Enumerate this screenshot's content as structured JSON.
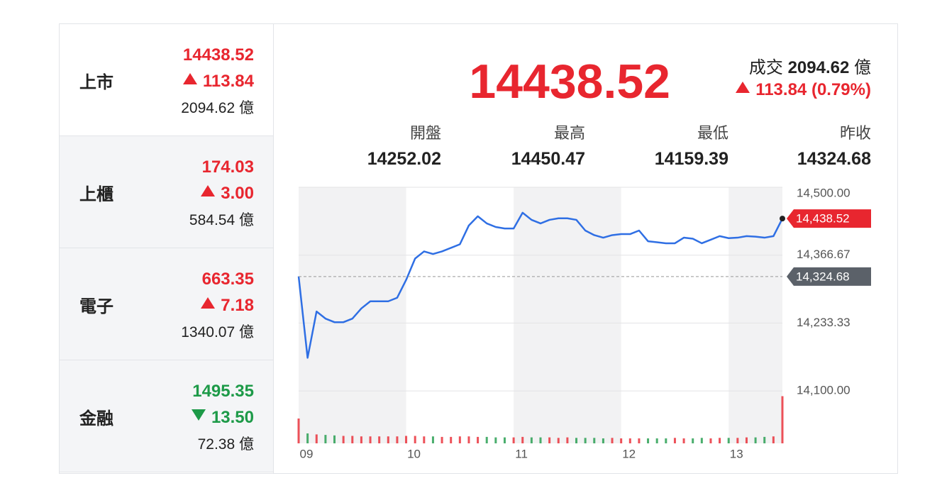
{
  "colors": {
    "up": "#e8262f",
    "down": "#1d9a48"
  },
  "sidebar": {
    "items": [
      {
        "name": "上市",
        "price": "14438.52",
        "change": "113.84",
        "direction": "up",
        "volume": "2094.62",
        "unit": "億"
      },
      {
        "name": "上櫃",
        "price": "174.03",
        "change": "3.00",
        "direction": "up",
        "volume": "584.54",
        "unit": "億"
      },
      {
        "name": "電子",
        "price": "663.35",
        "change": "7.18",
        "direction": "up",
        "volume": "1340.07",
        "unit": "億"
      },
      {
        "name": "金融",
        "price": "1495.35",
        "change": "13.50",
        "direction": "down",
        "volume": "72.38",
        "unit": "億"
      }
    ]
  },
  "quote": {
    "price": "14438.52",
    "volume_label": "成交",
    "volume": "2094.62",
    "unit": "億",
    "direction": "up",
    "change": "113.84",
    "change_pct": "(0.79%)",
    "stats": [
      {
        "label": "開盤",
        "value": "14252.02"
      },
      {
        "label": "最高",
        "value": "14450.47"
      },
      {
        "label": "最低",
        "value": "14159.39"
      },
      {
        "label": "昨收",
        "value": "14324.68"
      }
    ]
  },
  "chart_data": {
    "type": "line",
    "x": [
      540,
      545,
      550,
      555,
      560,
      565,
      570,
      575,
      580,
      585,
      590,
      595,
      600,
      605,
      610,
      615,
      620,
      625,
      630,
      635,
      640,
      645,
      650,
      655,
      660,
      665,
      670,
      675,
      680,
      685,
      690,
      695,
      700,
      705,
      710,
      715,
      720,
      725,
      730,
      735,
      740,
      745,
      750,
      755,
      760,
      765,
      770,
      775,
      780,
      785,
      790,
      795,
      800,
      805,
      810
    ],
    "xlim": [
      540,
      810
    ],
    "xticks": [
      {
        "value": 540,
        "label": "09"
      },
      {
        "value": 600,
        "label": "10"
      },
      {
        "value": 660,
        "label": "11"
      },
      {
        "value": 720,
        "label": "12"
      },
      {
        "value": 780,
        "label": "13"
      }
    ],
    "ylim": [
      13997,
      14500
    ],
    "yticks": [
      {
        "value": 14500,
        "label": "14,500.00"
      },
      {
        "value": 14366.67,
        "label": "14,366.67"
      },
      {
        "value": 14233.33,
        "label": "14,233.33"
      },
      {
        "value": 14100,
        "label": "14,100.00"
      }
    ],
    "y2lim": [
      0,
      100
    ],
    "grid": true,
    "series": [
      {
        "color": "#2f6fe4",
        "values": [
          14325,
          14165,
          14256,
          14242,
          14235,
          14235,
          14242,
          14262,
          14276,
          14276,
          14276,
          14283,
          14318,
          14360,
          14374,
          14369,
          14374,
          14381,
          14388,
          14425,
          14443,
          14429,
          14422,
          14419,
          14419,
          14450,
          14436,
          14429,
          14436,
          14439,
          14439,
          14436,
          14415,
          14406,
          14401,
          14406,
          14408,
          14408,
          14415,
          14394,
          14392,
          14390,
          14390,
          14401,
          14399,
          14390,
          14397,
          14404,
          14400,
          14401,
          14404,
          14403,
          14401,
          14404,
          14438.52
        ]
      },
      {
        "axis": "y2",
        "type": "bar",
        "up_color": "#e8262f",
        "down_color": "#1d9a48",
        "values": [
          50,
          20,
          18,
          17,
          16,
          15,
          15,
          14,
          14,
          14,
          14,
          14,
          15,
          15,
          14,
          14,
          13,
          13,
          14,
          14,
          13,
          13,
          12,
          12,
          12,
          13,
          12,
          12,
          12,
          11,
          12,
          11,
          11,
          11,
          10,
          11,
          10,
          10,
          10,
          10,
          10,
          10,
          11,
          10,
          10,
          11,
          10,
          11,
          11,
          11,
          12,
          12,
          13,
          14,
          95
        ]
      }
    ],
    "annotations": [
      {
        "value": 14438.52,
        "label": "14,438.52",
        "color": "#e8262f"
      },
      {
        "value": 14324.68,
        "label": "14,324.68",
        "color": "#5b6169",
        "dashed": true
      }
    ]
  }
}
